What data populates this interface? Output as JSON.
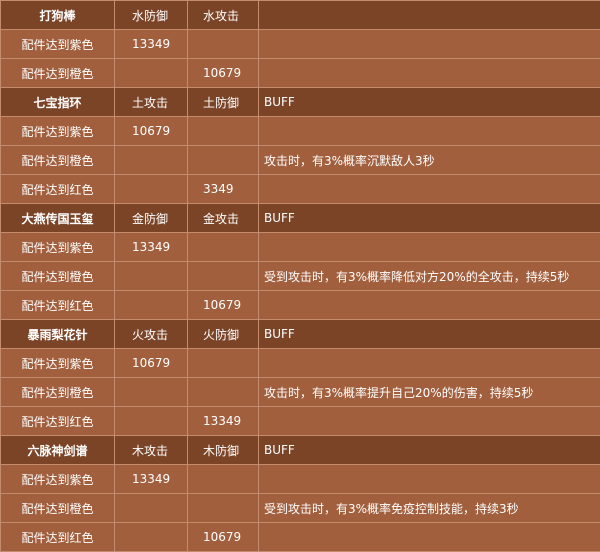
{
  "table": {
    "sections": [
      {
        "header": [
          "打狗棒",
          "水防御",
          "水攻击",
          null
        ],
        "rows": [
          [
            "配件达到紫色",
            "13349",
            null,
            null
          ],
          [
            "配件达到橙色",
            null,
            "10679",
            null
          ]
        ]
      },
      {
        "header": [
          "七宝指环",
          "土攻击",
          "土防御",
          "BUFF"
        ],
        "rows": [
          [
            "配件达到紫色",
            "10679",
            null,
            null
          ],
          [
            "配件达到橙色",
            null,
            null,
            "攻击时，有3%概率沉默敌人3秒"
          ],
          [
            "配件达到红色",
            null,
            "3349",
            null
          ]
        ]
      },
      {
        "header": [
          "大燕传国玉玺",
          "金防御",
          "金攻击",
          "BUFF"
        ],
        "rows": [
          [
            "配件达到紫色",
            "13349",
            null,
            null
          ],
          [
            "配件达到橙色",
            null,
            null,
            "受到攻击时，有3%概率降低对方20%的全攻击，持续5秒"
          ],
          [
            "配件达到红色",
            null,
            "10679",
            null
          ]
        ]
      },
      {
        "header": [
          "暴雨梨花针",
          "火攻击",
          "火防御",
          "BUFF"
        ],
        "rows": [
          [
            "配件达到紫色",
            "10679",
            null,
            null
          ],
          [
            "配件达到橙色",
            null,
            null,
            "攻击时，有3%概率提升自己20%的伤害，持续5秒"
          ],
          [
            "配件达到红色",
            null,
            "13349",
            null
          ]
        ]
      },
      {
        "header": [
          "六脉神剑谱",
          "木攻击",
          "木防御",
          "BUFF"
        ],
        "rows": [
          [
            "配件达到紫色",
            "13349",
            null,
            null
          ],
          [
            "配件达到橙色",
            null,
            null,
            "受到攻击时，有3%概率免疫控制技能，持续3秒"
          ],
          [
            "配件达到红色",
            null,
            "10679",
            null
          ]
        ]
      }
    ]
  }
}
